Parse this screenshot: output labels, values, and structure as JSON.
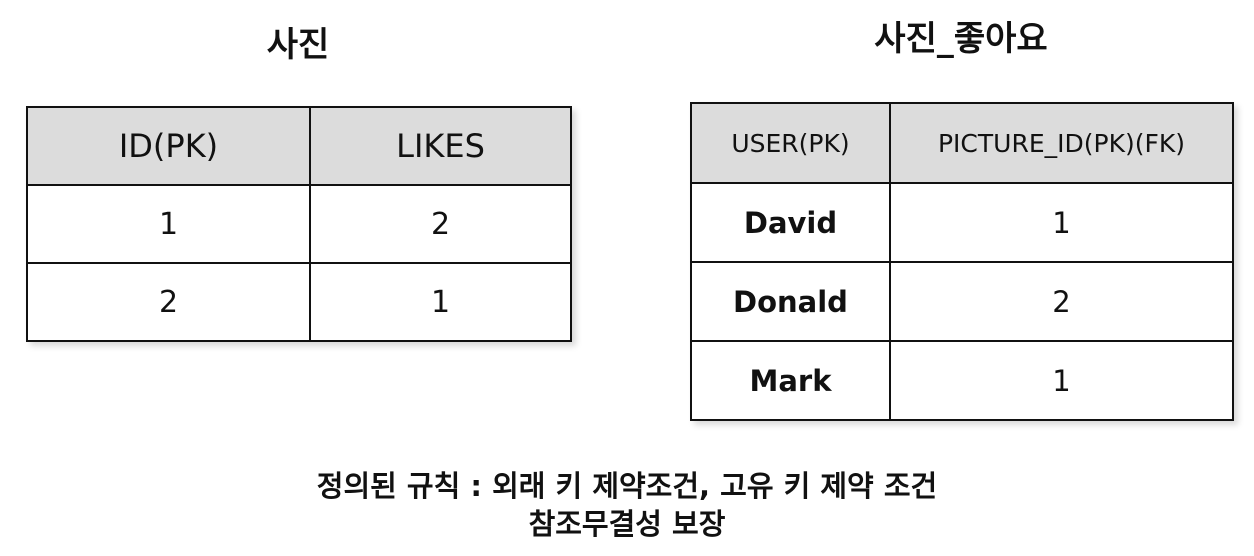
{
  "tables": {
    "left": {
      "title": "사진",
      "headers": [
        "ID(PK)",
        "LIKES"
      ],
      "rows": [
        [
          "1",
          "2"
        ],
        [
          "2",
          "1"
        ]
      ]
    },
    "right": {
      "title": "사진_좋아요",
      "headers": [
        "USER(PK)",
        "PICTURE_ID(PK)(FK)"
      ],
      "rows": [
        [
          "David",
          "1"
        ],
        [
          "Donald",
          "2"
        ],
        [
          "Mark",
          "1"
        ]
      ]
    }
  },
  "footer": {
    "line1": "정의된 규칙 : 외래 키 제약조건, 고유 키 제약 조건",
    "line2": "참조무결성 보장"
  },
  "colors": {
    "header_bg": "#dcdcdc",
    "border": "#111111"
  }
}
